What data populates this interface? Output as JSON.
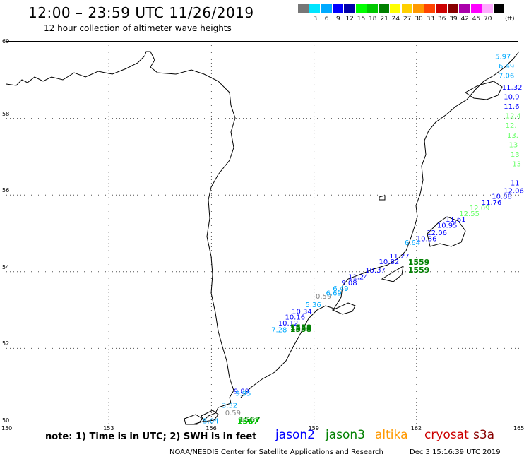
{
  "header": {
    "title": "12:00 – 23:59 UTC 11/26/2019",
    "subtitle": "12 hour collection of altimeter wave heights"
  },
  "colorscale": {
    "unit": "(ft)",
    "swatches": [
      {
        "color": "#777777",
        "label": ""
      },
      {
        "color": "#00e5ff",
        "label": "3"
      },
      {
        "color": "#00aaff",
        "label": "6"
      },
      {
        "color": "#0000ff",
        "label": "9"
      },
      {
        "color": "#0000aa",
        "label": "12"
      },
      {
        "color": "#00ff00",
        "label": "15"
      },
      {
        "color": "#00c800",
        "label": "18"
      },
      {
        "color": "#008000",
        "label": "21"
      },
      {
        "color": "#ffff00",
        "label": "24"
      },
      {
        "color": "#ffd000",
        "label": "27"
      },
      {
        "color": "#ff9900",
        "label": "30"
      },
      {
        "color": "#ff4400",
        "label": "33"
      },
      {
        "color": "#cc0000",
        "label": "36"
      },
      {
        "color": "#880000",
        "label": "39"
      },
      {
        "color": "#aa00aa",
        "label": "42"
      },
      {
        "color": "#ff00ff",
        "label": "45"
      },
      {
        "color": "#ffaaff",
        "label": "70"
      },
      {
        "color": "#000000",
        "label": ""
      }
    ]
  },
  "map": {
    "lon_range": [
      150,
      165
    ],
    "lat_range": [
      50,
      60
    ],
    "lon_ticks": [
      "150",
      "153",
      "156",
      "159",
      "162",
      "165"
    ],
    "lat_ticks": [
      "60",
      "58",
      "56",
      "54",
      "52",
      "50"
    ],
    "measurements": [
      {
        "text": "5.97",
        "lon": 164.3,
        "lat": 59.55,
        "color": "#00aaff"
      },
      {
        "text": "6.49",
        "lon": 164.4,
        "lat": 59.3,
        "color": "#00aaff"
      },
      {
        "text": "7.06",
        "lon": 164.4,
        "lat": 59.05,
        "color": "#00aaff"
      },
      {
        "text": "11.32",
        "lon": 164.5,
        "lat": 58.75,
        "color": "#0000ff"
      },
      {
        "text": "10.9",
        "lon": 164.55,
        "lat": 58.5,
        "color": "#0000ff"
      },
      {
        "text": "11.6",
        "lon": 164.55,
        "lat": 58.25,
        "color": "#0000ff"
      },
      {
        "text": "12.4",
        "lon": 164.6,
        "lat": 58.0,
        "color": "#66ff66"
      },
      {
        "text": "12.",
        "lon": 164.6,
        "lat": 57.75,
        "color": "#66ff66"
      },
      {
        "text": "13.",
        "lon": 164.65,
        "lat": 57.5,
        "color": "#66ff66"
      },
      {
        "text": "13",
        "lon": 164.7,
        "lat": 57.25,
        "color": "#66ff66"
      },
      {
        "text": "13",
        "lon": 164.75,
        "lat": 57.0,
        "color": "#66ff66"
      },
      {
        "text": "13",
        "lon": 164.8,
        "lat": 56.75,
        "color": "#66ff66"
      },
      {
        "text": "11",
        "lon": 164.75,
        "lat": 56.25,
        "color": "#0000ff"
      },
      {
        "text": "12.06",
        "lon": 164.55,
        "lat": 56.05,
        "color": "#0000ff"
      },
      {
        "text": "10.88",
        "lon": 164.2,
        "lat": 55.9,
        "color": "#0000ff"
      },
      {
        "text": "11.76",
        "lon": 163.9,
        "lat": 55.75,
        "color": "#0000ff"
      },
      {
        "text": "12.09",
        "lon": 163.55,
        "lat": 55.6,
        "color": "#66ff66"
      },
      {
        "text": "12.55",
        "lon": 163.25,
        "lat": 55.45,
        "color": "#66ff66"
      },
      {
        "text": "11.61",
        "lon": 162.85,
        "lat": 55.3,
        "color": "#0000ff"
      },
      {
        "text": "10.95",
        "lon": 162.6,
        "lat": 55.15,
        "color": "#0000ff"
      },
      {
        "text": "12.06",
        "lon": 162.3,
        "lat": 54.95,
        "color": "#0000ff"
      },
      {
        "text": "10.36",
        "lon": 162.0,
        "lat": 54.8,
        "color": "#0000ff"
      },
      {
        "text": "6.64",
        "lon": 161.65,
        "lat": 54.7,
        "color": "#00aaff"
      },
      {
        "text": "11.27",
        "lon": 161.2,
        "lat": 54.35,
        "color": "#0000ff"
      },
      {
        "text": "10.82",
        "lon": 160.9,
        "lat": 54.2,
        "color": "#0000ff"
      },
      {
        "text": "1559",
        "lon": 161.75,
        "lat": 54.18,
        "color": "#008000",
        "bold": true
      },
      {
        "text": "1559",
        "lon": 161.75,
        "lat": 53.98,
        "color": "#008000",
        "bold": true
      },
      {
        "text": "10.37",
        "lon": 160.5,
        "lat": 53.98,
        "color": "#0000ff"
      },
      {
        "text": "11.24",
        "lon": 160.0,
        "lat": 53.8,
        "color": "#0000ff"
      },
      {
        "text": "9.08",
        "lon": 159.8,
        "lat": 53.65,
        "color": "#0000ff"
      },
      {
        "text": "6.49",
        "lon": 159.55,
        "lat": 53.5,
        "color": "#00aaff"
      },
      {
        "text": "6.69",
        "lon": 159.35,
        "lat": 53.38,
        "color": "#00aaff"
      },
      {
        "text": "0.59",
        "lon": 159.05,
        "lat": 53.3,
        "color": "#888888"
      },
      {
        "text": "5.36",
        "lon": 158.75,
        "lat": 53.08,
        "color": "#00aaff"
      },
      {
        "text": "10.34",
        "lon": 158.35,
        "lat": 52.9,
        "color": "#0000ff"
      },
      {
        "text": "10.16",
        "lon": 158.15,
        "lat": 52.75,
        "color": "#0000ff"
      },
      {
        "text": "10.12",
        "lon": 157.95,
        "lat": 52.6,
        "color": "#0000ff"
      },
      {
        "text": "1558",
        "lon": 158.3,
        "lat": 52.48,
        "color": "#008000",
        "bold": true
      },
      {
        "text": "1558",
        "lon": 158.3,
        "lat": 52.43,
        "color": "#008000",
        "bold": true
      },
      {
        "text": "7.28",
        "lon": 157.75,
        "lat": 52.42,
        "color": "#00aaff"
      },
      {
        "text": "9.89",
        "lon": 156.65,
        "lat": 50.82,
        "color": "#0000ff"
      },
      {
        "text": "9.95",
        "lon": 156.7,
        "lat": 50.76,
        "color": "#00aaff"
      },
      {
        "text": "3.32",
        "lon": 156.3,
        "lat": 50.45,
        "color": "#00aaff"
      },
      {
        "text": "0.59",
        "lon": 156.4,
        "lat": 50.26,
        "color": "#888888"
      },
      {
        "text": "5.04",
        "lon": 155.75,
        "lat": 50.05,
        "color": "#00aaff"
      },
      {
        "text": "1567",
        "lon": 156.8,
        "lat": 50.07,
        "color": "#008000",
        "bold": true
      },
      {
        "text": "1567",
        "lon": 156.75,
        "lat": 50.03,
        "color": "#00c800",
        "bold": true
      }
    ]
  },
  "footer": {
    "note": "note: 1) Time is in UTC; 2) SWH is in feet",
    "satellites": [
      {
        "name": "jason2",
        "color": "#0000ff"
      },
      {
        "name": "jason3",
        "color": "#008000"
      },
      {
        "name": "altika",
        "color": "#ff9900"
      },
      {
        "name": "cryosat",
        "color": "#cc0000"
      },
      {
        "name": "s3a",
        "color": "#880000"
      }
    ],
    "credit": "NOAA/NESDIS Center for Satellite Applications and Research",
    "timestamp": "Dec  3 15:16:39 UTC 2019"
  }
}
